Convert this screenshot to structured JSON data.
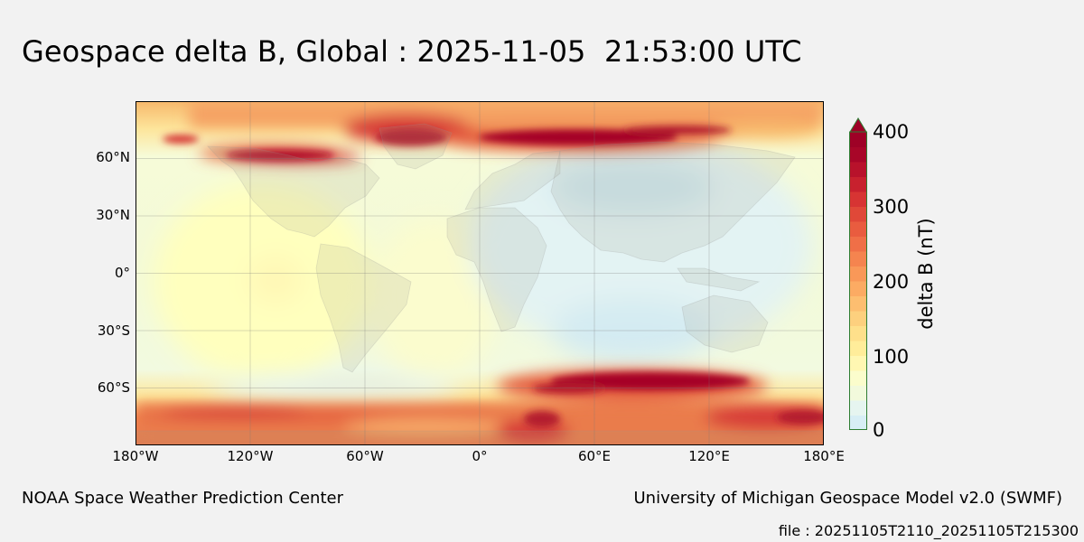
{
  "title": "Geospace delta B, Global : 2025-11-05  21:53:00 UTC",
  "map": {
    "lat_labels": [
      "60°N",
      "30°N",
      "0°",
      "30°S",
      "60°S"
    ],
    "lon_labels": [
      "180°W",
      "120°W",
      "60°W",
      "0°",
      "60°E",
      "120°E",
      "180°E"
    ],
    "colors": {
      "low": "#dff2f8",
      "mid": "#ffffc0",
      "high": "#9e0126"
    }
  },
  "colorbar": {
    "label": "delta B (nT)",
    "ticks": [
      "400",
      "300",
      "200",
      "100",
      "0"
    ],
    "range": [
      0,
      400
    ],
    "extend": "max"
  },
  "footer": {
    "left": "NOAA Space Weather Prediction Center",
    "right": "University of Michigan Geospace Model v2.0 (SWMF)",
    "file": "file : 20251105T2110_20251105T215300"
  }
}
